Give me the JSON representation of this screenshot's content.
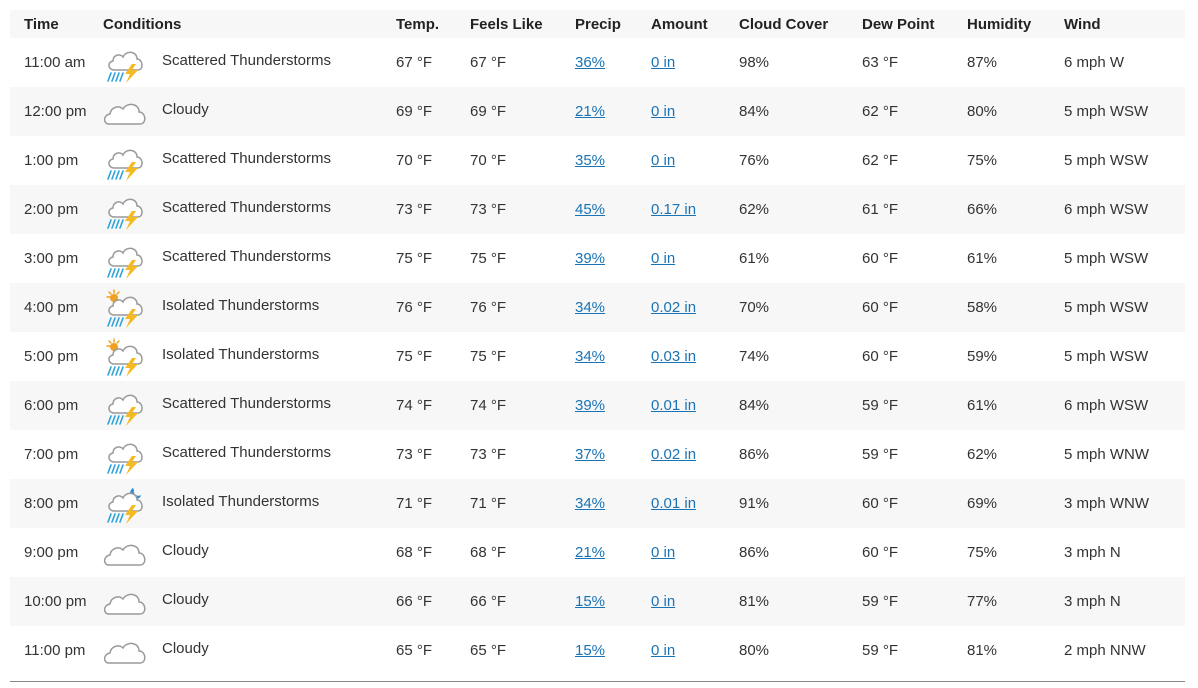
{
  "headers": {
    "time": "Time",
    "conditions": "Conditions",
    "temp": "Temp.",
    "feels_like": "Feels Like",
    "precip": "Precip",
    "amount": "Amount",
    "cloud_cover": "Cloud Cover",
    "dew_point": "Dew Point",
    "humidity": "Humidity",
    "wind": "Wind"
  },
  "icon_names": {
    "tstorm": "scattered-thunderstorms-icon",
    "cloudy": "cloudy-icon",
    "tstorm_day": "isolated-thunderstorms-day-icon",
    "tstorm_night": "isolated-thunderstorms-night-icon"
  },
  "colors": {
    "link": "#1a73b5",
    "lightning": "#f5b921",
    "rain": "#2fa3d8",
    "sun": "#f0a020",
    "moon": "#2f8fd8",
    "cloud": "#9a9a9a"
  },
  "rows": [
    {
      "time": "11:00 am",
      "icon": "tstorm",
      "conditions": "Scattered Thunderstorms",
      "temp": "67 °F",
      "feels_like": "67 °F",
      "precip": "36%",
      "amount": "0 in",
      "cloud_cover": "98%",
      "dew_point": "63 °F",
      "humidity": "87%",
      "wind": "6 mph W"
    },
    {
      "time": "12:00 pm",
      "icon": "cloudy",
      "conditions": "Cloudy",
      "temp": "69 °F",
      "feels_like": "69 °F",
      "precip": "21%",
      "amount": "0 in",
      "cloud_cover": "84%",
      "dew_point": "62 °F",
      "humidity": "80%",
      "wind": "5 mph WSW"
    },
    {
      "time": "1:00 pm",
      "icon": "tstorm",
      "conditions": "Scattered Thunderstorms",
      "temp": "70 °F",
      "feels_like": "70 °F",
      "precip": "35%",
      "amount": "0 in",
      "cloud_cover": "76%",
      "dew_point": "62 °F",
      "humidity": "75%",
      "wind": "5 mph WSW"
    },
    {
      "time": "2:00 pm",
      "icon": "tstorm",
      "conditions": "Scattered Thunderstorms",
      "temp": "73 °F",
      "feels_like": "73 °F",
      "precip": "45%",
      "amount": "0.17 in",
      "cloud_cover": "62%",
      "dew_point": "61 °F",
      "humidity": "66%",
      "wind": "6 mph WSW"
    },
    {
      "time": "3:00 pm",
      "icon": "tstorm",
      "conditions": "Scattered Thunderstorms",
      "temp": "75 °F",
      "feels_like": "75 °F",
      "precip": "39%",
      "amount": "0 in",
      "cloud_cover": "61%",
      "dew_point": "60 °F",
      "humidity": "61%",
      "wind": "5 mph WSW"
    },
    {
      "time": "4:00 pm",
      "icon": "tstorm_day",
      "conditions": "Isolated Thunderstorms",
      "temp": "76 °F",
      "feels_like": "76 °F",
      "precip": "34%",
      "amount": "0.02 in",
      "cloud_cover": "70%",
      "dew_point": "60 °F",
      "humidity": "58%",
      "wind": "5 mph WSW"
    },
    {
      "time": "5:00 pm",
      "icon": "tstorm_day",
      "conditions": "Isolated Thunderstorms",
      "temp": "75 °F",
      "feels_like": "75 °F",
      "precip": "34%",
      "amount": "0.03 in",
      "cloud_cover": "74%",
      "dew_point": "60 °F",
      "humidity": "59%",
      "wind": "5 mph WSW"
    },
    {
      "time": "6:00 pm",
      "icon": "tstorm",
      "conditions": "Scattered Thunderstorms",
      "temp": "74 °F",
      "feels_like": "74 °F",
      "precip": "39%",
      "amount": "0.01 in",
      "cloud_cover": "84%",
      "dew_point": "59 °F",
      "humidity": "61%",
      "wind": "6 mph WSW"
    },
    {
      "time": "7:00 pm",
      "icon": "tstorm",
      "conditions": "Scattered Thunderstorms",
      "temp": "73 °F",
      "feels_like": "73 °F",
      "precip": "37%",
      "amount": "0.02 in",
      "cloud_cover": "86%",
      "dew_point": "59 °F",
      "humidity": "62%",
      "wind": "5 mph WNW"
    },
    {
      "time": "8:00 pm",
      "icon": "tstorm_night",
      "conditions": "Isolated Thunderstorms",
      "temp": "71 °F",
      "feels_like": "71 °F",
      "precip": "34%",
      "amount": "0.01 in",
      "cloud_cover": "91%",
      "dew_point": "60 °F",
      "humidity": "69%",
      "wind": "3 mph WNW"
    },
    {
      "time": "9:00 pm",
      "icon": "cloudy",
      "conditions": "Cloudy",
      "temp": "68 °F",
      "feels_like": "68 °F",
      "precip": "21%",
      "amount": "0 in",
      "cloud_cover": "86%",
      "dew_point": "60 °F",
      "humidity": "75%",
      "wind": "3 mph N"
    },
    {
      "time": "10:00 pm",
      "icon": "cloudy",
      "conditions": "Cloudy",
      "temp": "66 °F",
      "feels_like": "66 °F",
      "precip": "15%",
      "amount": "0 in",
      "cloud_cover": "81%",
      "dew_point": "59 °F",
      "humidity": "77%",
      "wind": "3 mph N"
    },
    {
      "time": "11:00 pm",
      "icon": "cloudy",
      "conditions": "Cloudy",
      "temp": "65 °F",
      "feels_like": "65 °F",
      "precip": "15%",
      "amount": "0 in",
      "cloud_cover": "80%",
      "dew_point": "59 °F",
      "humidity": "81%",
      "wind": "2 mph NNW"
    }
  ]
}
